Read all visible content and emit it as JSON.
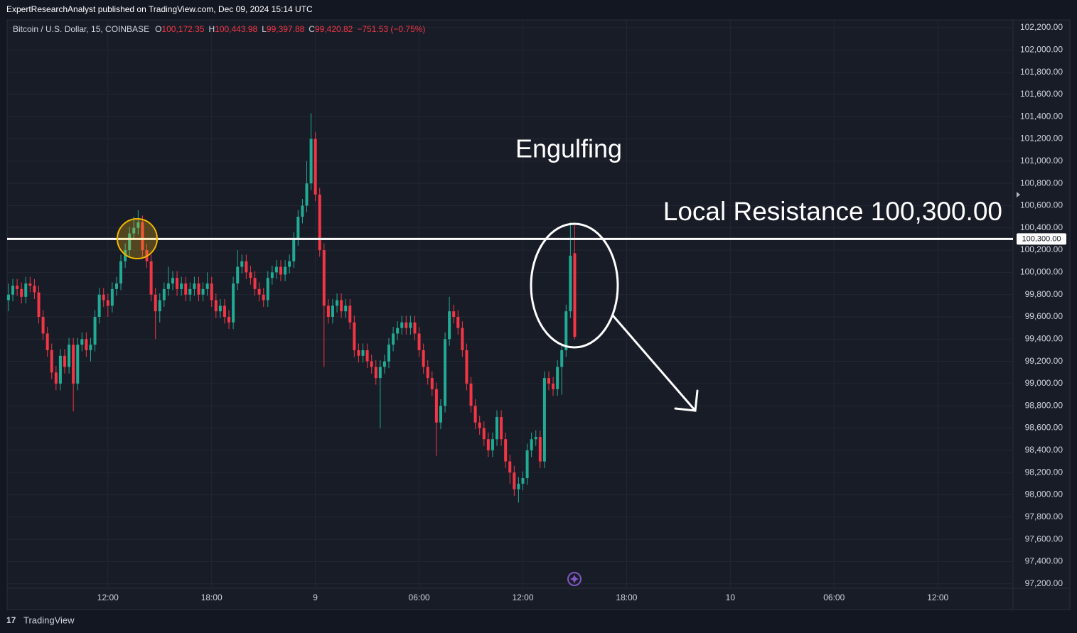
{
  "header": {
    "publisher": "ExpertResearchAnalyst published on TradingView.com, Dec 09, 2024 15:14 UTC"
  },
  "footer": {
    "brand": "TradingView"
  },
  "chart_data": {
    "type": "candlestick",
    "symbol": "Bitcoin / U.S. Dollar, 15, COINBASE",
    "ohlc_legend": [
      {
        "key": "O",
        "value": "100,172.35"
      },
      {
        "key": "H",
        "value": "100,443.98"
      },
      {
        "key": "L",
        "value": "99,397.88"
      },
      {
        "key": "C",
        "value": "99,420.82"
      }
    ],
    "change": "−751.53 (−0.75%)",
    "up_color": "#22ab94",
    "down_color": "#f23645",
    "annotations": {
      "pattern": "Engulfing",
      "resistance_text": "Local Resistance 100,300.00"
    },
    "resistance": {
      "value": 100300,
      "label": "100,300.00",
      "color": "#ffffff"
    },
    "xlim": [
      6.17,
      64.35
    ],
    "xticks": [
      {
        "value": 12,
        "label": "12:00"
      },
      {
        "value": 18,
        "label": "18:00"
      },
      {
        "value": 24,
        "label": "9"
      },
      {
        "value": 30,
        "label": "06:00"
      },
      {
        "value": 36,
        "label": "12:00"
      },
      {
        "value": 42,
        "label": "18:00"
      },
      {
        "value": 48,
        "label": "10"
      },
      {
        "value": 54,
        "label": "06:00"
      },
      {
        "value": 60,
        "label": "12:00"
      }
    ],
    "ylim": [
      97160,
      102270
    ],
    "yticks": [
      {
        "value": 97200,
        "label": "97,200.00"
      },
      {
        "value": 97400,
        "label": "97,400.00"
      },
      {
        "value": 97600,
        "label": "97,600.00"
      },
      {
        "value": 97800,
        "label": "97,800.00"
      },
      {
        "value": 98000,
        "label": "98,000.00"
      },
      {
        "value": 98200,
        "label": "98,200.00"
      },
      {
        "value": 98400,
        "label": "98,400.00"
      },
      {
        "value": 98600,
        "label": "98,600.00"
      },
      {
        "value": 98800,
        "label": "98,800.00"
      },
      {
        "value": 99000,
        "label": "99,000.00"
      },
      {
        "value": 99200,
        "label": "99,200.00"
      },
      {
        "value": 99400,
        "label": "99,400.00"
      },
      {
        "value": 99600,
        "label": "99,600.00"
      },
      {
        "value": 99800,
        "label": "99,800.00"
      },
      {
        "value": 100000,
        "label": "100,000.00"
      },
      {
        "value": 100200,
        "label": "100,200.00"
      },
      {
        "value": 100400,
        "label": "100,400.00"
      },
      {
        "value": 100600,
        "label": "100,600.00"
      },
      {
        "value": 100800,
        "label": "100,800.00"
      },
      {
        "value": 101000,
        "label": "101,000.00"
      },
      {
        "value": 101200,
        "label": "101,200.00"
      },
      {
        "value": 101400,
        "label": "101,400.00"
      },
      {
        "value": 101600,
        "label": "101,600.00"
      },
      {
        "value": 101800,
        "label": "101,800.00"
      },
      {
        "value": 102000,
        "label": "102,000.00"
      },
      {
        "value": 102200,
        "label": "102,200.00"
      }
    ],
    "grid": true,
    "x": [
      6.25,
      6.5,
      6.75,
      7,
      7.25,
      7.5,
      7.75,
      8,
      8.25,
      8.5,
      8.75,
      9,
      9.25,
      9.5,
      9.75,
      10,
      10.25,
      10.5,
      10.75,
      11,
      11.25,
      11.5,
      11.75,
      12,
      12.25,
      12.5,
      12.75,
      13,
      13.25,
      13.5,
      13.75,
      14,
      14.25,
      14.5,
      14.75,
      15,
      15.25,
      15.5,
      15.75,
      16,
      16.25,
      16.5,
      16.75,
      17,
      17.25,
      17.5,
      17.75,
      18,
      18.25,
      18.5,
      18.75,
      19,
      19.25,
      19.5,
      19.75,
      20,
      20.25,
      20.5,
      20.75,
      21,
      21.25,
      21.5,
      21.75,
      22,
      22.25,
      22.5,
      22.75,
      23,
      23.25,
      23.5,
      23.75,
      24,
      24.25,
      24.5,
      24.75,
      25,
      25.25,
      25.5,
      25.75,
      26,
      26.25,
      26.5,
      26.75,
      27,
      27.25,
      27.5,
      27.75,
      28,
      28.25,
      28.5,
      28.75,
      29,
      29.25,
      29.5,
      29.75,
      30,
      30.25,
      30.5,
      30.75,
      31,
      31.25,
      31.5,
      31.75,
      32,
      32.25,
      32.5,
      32.75,
      33,
      33.25,
      33.5,
      33.75,
      34,
      34.25,
      34.5,
      34.75,
      35,
      35.25,
      35.5,
      35.75,
      36,
      36.25,
      36.5,
      36.75,
      37,
      37.25,
      37.5,
      37.75,
      38,
      38.25,
      38.5,
      38.75,
      39
    ],
    "candles": [
      [
        99750,
        99900,
        99650,
        99800
      ],
      [
        99800,
        99940,
        99740,
        99880
      ],
      [
        99880,
        99940,
        99790,
        99850
      ],
      [
        99850,
        99910,
        99720,
        99780
      ],
      [
        99780,
        99960,
        99720,
        99900
      ],
      [
        99900,
        99960,
        99820,
        99880
      ],
      [
        99880,
        99940,
        99760,
        99820
      ],
      [
        99820,
        99880,
        99540,
        99600
      ],
      [
        99600,
        99660,
        99390,
        99450
      ],
      [
        99450,
        99510,
        99240,
        99300
      ],
      [
        99300,
        99360,
        99040,
        99100
      ],
      [
        99100,
        99160,
        98940,
        99000
      ],
      [
        99000,
        99310,
        98940,
        99250
      ],
      [
        99250,
        99310,
        99090,
        99150
      ],
      [
        99150,
        99410,
        99090,
        99350
      ],
      [
        99350,
        99410,
        98750,
        99000
      ],
      [
        99000,
        99410,
        98940,
        99350
      ],
      [
        99350,
        99460,
        99290,
        99400
      ],
      [
        99400,
        99460,
        99240,
        99300
      ],
      [
        99300,
        99410,
        99200,
        99350
      ],
      [
        99350,
        99660,
        99290,
        99600
      ],
      [
        99600,
        99860,
        99540,
        99800
      ],
      [
        99800,
        99860,
        99690,
        99750
      ],
      [
        99750,
        99810,
        99600,
        99700
      ],
      [
        99700,
        99910,
        99640,
        99850
      ],
      [
        99850,
        99960,
        99790,
        99900
      ],
      [
        99900,
        100160,
        99840,
        100100
      ],
      [
        100100,
        100260,
        100040,
        100200
      ],
      [
        100200,
        100410,
        100140,
        100350
      ],
      [
        100350,
        100500,
        100290,
        100400
      ],
      [
        100400,
        100560,
        100340,
        100450
      ],
      [
        100450,
        100510,
        100140,
        100200
      ],
      [
        100200,
        100260,
        100040,
        100100
      ],
      [
        100100,
        100160,
        99740,
        99800
      ],
      [
        99800,
        99860,
        99400,
        99650
      ],
      [
        99650,
        99810,
        99550,
        99750
      ],
      [
        99750,
        99910,
        99690,
        99850
      ],
      [
        99850,
        100050,
        99790,
        99900
      ],
      [
        99900,
        100010,
        99840,
        99950
      ],
      [
        99950,
        100010,
        99790,
        99850
      ],
      [
        99850,
        99960,
        99790,
        99900
      ],
      [
        99900,
        99960,
        99740,
        99800
      ],
      [
        99800,
        99910,
        99740,
        99850
      ],
      [
        99850,
        99960,
        99790,
        99900
      ],
      [
        99900,
        99960,
        99740,
        99800
      ],
      [
        99800,
        99910,
        99740,
        99850
      ],
      [
        99850,
        100000,
        99790,
        99900
      ],
      [
        99900,
        99960,
        99690,
        99750
      ],
      [
        99750,
        99810,
        99590,
        99650
      ],
      [
        99650,
        99760,
        99590,
        99700
      ],
      [
        99700,
        99760,
        99540,
        99600
      ],
      [
        99600,
        99660,
        99490,
        99550
      ],
      [
        99550,
        99960,
        99490,
        99900
      ],
      [
        99900,
        100200,
        99840,
        100050
      ],
      [
        100050,
        100160,
        99990,
        100100
      ],
      [
        100100,
        100160,
        99940,
        100000
      ],
      [
        100000,
        100060,
        99890,
        99950
      ],
      [
        99950,
        100010,
        99790,
        99850
      ],
      [
        99850,
        99910,
        99740,
        99800
      ],
      [
        99800,
        99860,
        99690,
        99750
      ],
      [
        99750,
        100010,
        99690,
        99950
      ],
      [
        99950,
        100060,
        99890,
        100000
      ],
      [
        100000,
        100110,
        99940,
        100050
      ],
      [
        100050,
        100110,
        99920,
        99980
      ],
      [
        99980,
        100110,
        99920,
        100050
      ],
      [
        100050,
        100160,
        99990,
        100100
      ],
      [
        100100,
        100360,
        100040,
        100300
      ],
      [
        100300,
        100560,
        100240,
        100500
      ],
      [
        100500,
        100660,
        100440,
        100600
      ],
      [
        100600,
        101000,
        100540,
        100800
      ],
      [
        100800,
        101430,
        100740,
        101200
      ],
      [
        101200,
        101260,
        100640,
        100700
      ],
      [
        100700,
        100760,
        100140,
        100200
      ],
      [
        100200,
        100260,
        99150,
        99700
      ],
      [
        99700,
        99760,
        99540,
        99600
      ],
      [
        99600,
        99760,
        99540,
        99700
      ],
      [
        99700,
        99810,
        99640,
        99750
      ],
      [
        99750,
        99810,
        99590,
        99650
      ],
      [
        99650,
        99760,
        99590,
        99700
      ],
      [
        99700,
        99760,
        99490,
        99550
      ],
      [
        99550,
        99610,
        99240,
        99300
      ],
      [
        99300,
        99360,
        99190,
        99250
      ],
      [
        99250,
        99360,
        99190,
        99300
      ],
      [
        99300,
        99360,
        99140,
        99200
      ],
      [
        99200,
        99260,
        99090,
        99150
      ],
      [
        99150,
        99210,
        98990,
        99050
      ],
      [
        99050,
        99210,
        98600,
        99150
      ],
      [
        99150,
        99260,
        99090,
        99200
      ],
      [
        99200,
        99410,
        99140,
        99350
      ],
      [
        99350,
        99510,
        99290,
        99450
      ],
      [
        99450,
        99560,
        99390,
        99500
      ],
      [
        99500,
        99610,
        99440,
        99550
      ],
      [
        99550,
        99610,
        99440,
        99500
      ],
      [
        99500,
        99610,
        99440,
        99550
      ],
      [
        99550,
        99610,
        99390,
        99450
      ],
      [
        99450,
        99510,
        99240,
        99300
      ],
      [
        99300,
        99360,
        99090,
        99150
      ],
      [
        99150,
        99210,
        98990,
        99050
      ],
      [
        99050,
        99110,
        98890,
        98950
      ],
      [
        98950,
        99010,
        98350,
        98650
      ],
      [
        98650,
        98860,
        98590,
        98800
      ],
      [
        98800,
        99460,
        98740,
        99400
      ],
      [
        99400,
        99780,
        99340,
        99650
      ],
      [
        99650,
        99710,
        99540,
        99600
      ],
      [
        99600,
        99660,
        99440,
        99500
      ],
      [
        99500,
        99560,
        99240,
        99300
      ],
      [
        99300,
        99360,
        98940,
        99000
      ],
      [
        99000,
        99060,
        98740,
        98800
      ],
      [
        98800,
        98860,
        98590,
        98650
      ],
      [
        98650,
        98710,
        98540,
        98600
      ],
      [
        98600,
        98660,
        98440,
        98500
      ],
      [
        98500,
        98560,
        98340,
        98400
      ],
      [
        98400,
        98560,
        98340,
        98500
      ],
      [
        98500,
        98760,
        98440,
        98700
      ],
      [
        98700,
        98760,
        98440,
        98500
      ],
      [
        98500,
        98560,
        98240,
        98300
      ],
      [
        98300,
        98360,
        98100,
        98200
      ],
      [
        98200,
        98260,
        97990,
        98050
      ],
      [
        98050,
        98160,
        97930,
        98100
      ],
      [
        98100,
        98210,
        98040,
        98150
      ],
      [
        98150,
        98460,
        98090,
        98400
      ],
      [
        98400,
        98560,
        98340,
        98500
      ],
      [
        98500,
        98580,
        98440,
        98520
      ],
      [
        98520,
        98580,
        98240,
        98300
      ],
      [
        98300,
        99110,
        98240,
        99050
      ],
      [
        99050,
        99110,
        98940,
        99000
      ],
      [
        99000,
        99060,
        98890,
        98950
      ],
      [
        98950,
        99210,
        98890,
        99150
      ],
      [
        99150,
        99360,
        98900,
        99300
      ],
      [
        99300,
        99710,
        99240,
        99650
      ],
      [
        99650,
        100450,
        99590,
        100150
      ],
      [
        100172.35,
        100443.98,
        99397.88,
        99420.82
      ]
    ]
  }
}
